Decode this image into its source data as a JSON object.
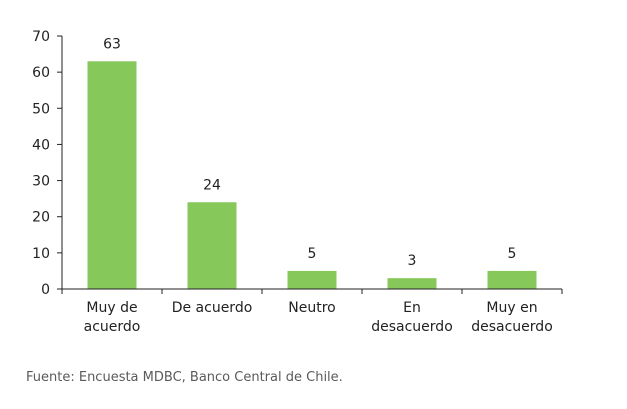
{
  "chart_data": {
    "type": "bar",
    "categories": [
      [
        "Muy de",
        "acuerdo"
      ],
      [
        "De acuerdo"
      ],
      [
        "Neutro"
      ],
      [
        "En",
        "desacuerdo"
      ],
      [
        "Muy en",
        "desacuerdo"
      ]
    ],
    "values": [
      63,
      24,
      5,
      3,
      5
    ],
    "data_labels": [
      "63",
      "24",
      "5",
      "3",
      "5"
    ],
    "yticks": [
      "0",
      "10",
      "20",
      "30",
      "40",
      "50",
      "60",
      "70"
    ],
    "ylim": [
      0,
      70
    ],
    "title": "",
    "xlabel": "",
    "ylabel": "",
    "grid": false,
    "bar_color": "#86c85a",
    "axis_color": "#222222",
    "text_color": "#222222"
  },
  "source": "Fuente: Encuesta MDBC, Banco Central de Chile."
}
